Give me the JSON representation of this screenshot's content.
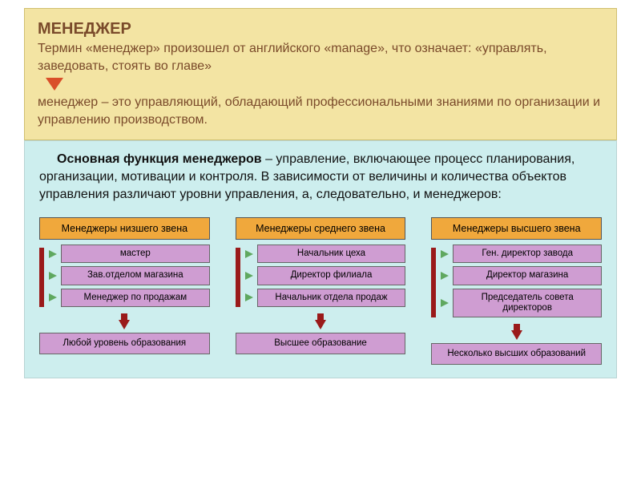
{
  "colors": {
    "header_bg": "#f3e4a3",
    "header_text": "#7a4a2a",
    "title_color": "#7a4a2a",
    "arrow_down": "#d94f2a",
    "body_bg": "#cdeeee",
    "col_header_bg": "#f0a83c",
    "item_bg": "#cf9dd2",
    "footer_bg": "#cf9dd2",
    "vbar_color": "#9a1a1a",
    "item_arrow_color": "#5fa85f",
    "big_arrow_color": "#9a1a1a"
  },
  "header": {
    "title": "МЕНЕДЖЕР",
    "line1": "Термин «менеджер» произошел от английского «manage», что означает: «управлять, заведовать, стоять во главе»",
    "line2": "менеджер – это управляющий, обладающий профессиональными знаниями по организации и управлению производством."
  },
  "body": {
    "bold_lead": "Основная функция менеджеров",
    "rest": " – управление, включающее процесс планирования, организации, мотивации и контроля. В зависимости от величины и количества объектов управления различают уровни управления, а, следовательно, и менеджеров:"
  },
  "columns": [
    {
      "header": "Менеджеры низшего звена",
      "items": [
        "мастер",
        "Зав.отделом магазина",
        "Менеджер по продажам"
      ],
      "footer": "Любой уровень образования"
    },
    {
      "header": "Менеджеры среднего звена",
      "items": [
        "Начальник цеха",
        "Директор филиала",
        "Начальник отдела продаж"
      ],
      "footer": "Высшее образование"
    },
    {
      "header": "Менеджеры высшего звена",
      "items": [
        "Ген. директор завода",
        "Директор магазина",
        "Председатель совета директоров"
      ],
      "footer": "Несколько высших образований"
    }
  ]
}
